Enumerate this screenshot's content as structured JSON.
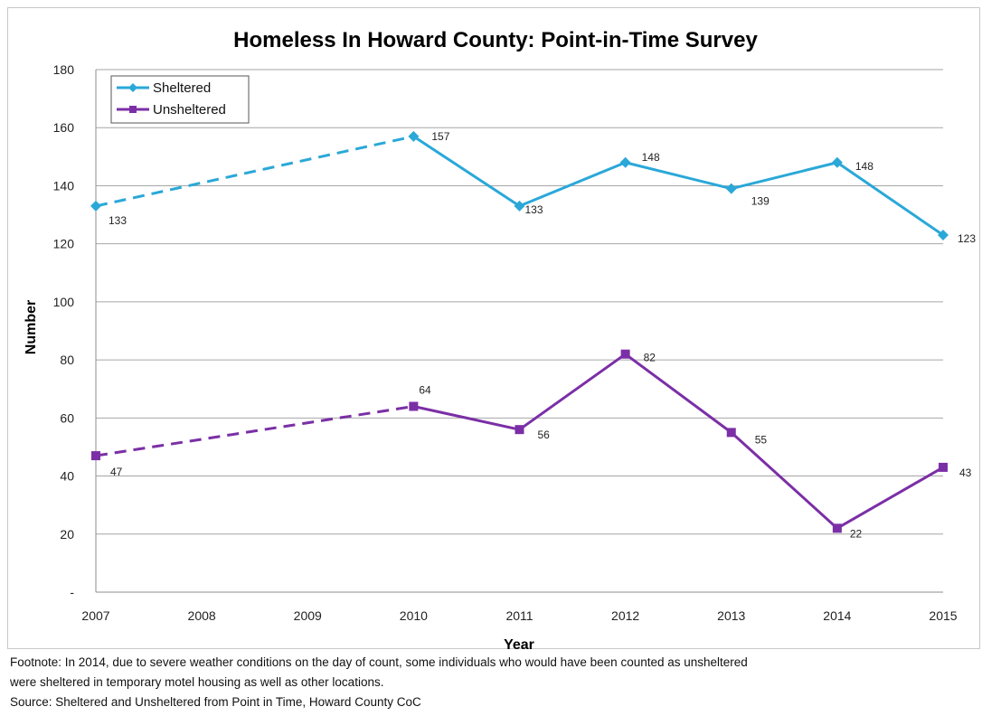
{
  "chart_data": {
    "type": "line",
    "title": "Homeless In Howard County: Point-in-Time Survey",
    "xlabel": "Year",
    "ylabel": "Number",
    "x": [
      "2007",
      "2008",
      "2009",
      "2010",
      "2011",
      "2012",
      "2013",
      "2014",
      "2015"
    ],
    "yticks": [
      "-",
      "20",
      "40",
      "60",
      "80",
      "100",
      "120",
      "140",
      "160",
      "180"
    ],
    "ylim": [
      0,
      180
    ],
    "grid": true,
    "legend_position": "top-left",
    "series": [
      {
        "name": "Sheltered",
        "color": "#2aa8d8",
        "marker": "diamond",
        "points": [
          {
            "x": "2007",
            "y": 133,
            "label": "133"
          },
          {
            "x": "2010",
            "y": 157,
            "label": "157"
          },
          {
            "x": "2011",
            "y": 133,
            "label": "133"
          },
          {
            "x": "2012",
            "y": 148,
            "label": "148"
          },
          {
            "x": "2013",
            "y": 139,
            "label": "139"
          },
          {
            "x": "2014",
            "y": 148,
            "label": "148"
          },
          {
            "x": "2015",
            "y": 123,
            "label": "123"
          }
        ],
        "dashed_segments": [
          [
            "2007",
            "2010"
          ]
        ]
      },
      {
        "name": "Unsheltered",
        "color": "#7b2fa6",
        "marker": "square",
        "points": [
          {
            "x": "2007",
            "y": 47,
            "label": "47"
          },
          {
            "x": "2010",
            "y": 64,
            "label": "64"
          },
          {
            "x": "2011",
            "y": 56,
            "label": "56"
          },
          {
            "x": "2012",
            "y": 82,
            "label": "82"
          },
          {
            "x": "2013",
            "y": 55,
            "label": "55"
          },
          {
            "x": "2014",
            "y": 22,
            "label": "22"
          },
          {
            "x": "2015",
            "y": 43,
            "label": "43"
          }
        ],
        "dashed_segments": [
          [
            "2007",
            "2010"
          ]
        ]
      }
    ]
  },
  "footnote_line1": "Footnote:  In 2014, due to severe weather conditions on the day of count, some individuals who would have been counted as unsheltered",
  "footnote_line2": "were sheltered in temporary  motel housing as well as other locations.",
  "source": "Source: Sheltered  and Unsheltered from Point in Time, Howard County CoC"
}
